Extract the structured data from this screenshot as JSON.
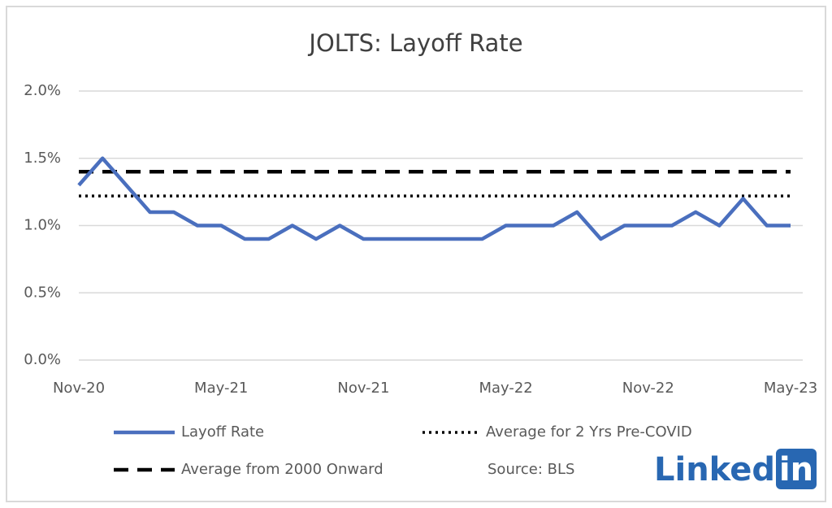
{
  "chart_data": {
    "type": "line",
    "title": "JOLTS: Layoff Rate",
    "categories": [
      "Nov-20",
      null,
      null,
      null,
      null,
      null,
      "May-21",
      null,
      null,
      null,
      null,
      null,
      "Nov-21",
      null,
      null,
      null,
      null,
      null,
      "May-22",
      null,
      null,
      null,
      null,
      null,
      "Nov-22",
      null,
      null,
      null,
      null,
      null,
      "May-23"
    ],
    "series": [
      {
        "name": "Layoff Rate",
        "color": "#4a6fbe",
        "values": [
          1.3,
          1.5,
          1.3,
          1.1,
          1.1,
          1.0,
          1.0,
          0.9,
          0.9,
          1.0,
          0.9,
          1.0,
          0.9,
          0.9,
          0.9,
          0.9,
          0.9,
          0.9,
          1.0,
          1.0,
          1.0,
          1.1,
          0.9,
          1.0,
          1.0,
          1.0,
          1.1,
          1.0,
          1.2,
          1.0,
          1.0
        ]
      }
    ],
    "reference_lines": [
      {
        "name": "Average for 2 Yrs Pre-COVID",
        "value": 1.22,
        "style": "dotted",
        "color": "#000000"
      },
      {
        "name": "Average from 2000 Onward",
        "value": 1.4,
        "style": "dashed",
        "color": "#000000"
      }
    ],
    "ylim": [
      0,
      2
    ],
    "yticks": [
      {
        "value": 0,
        "label": "0.0%"
      },
      {
        "value": 0.5,
        "label": "0.5%"
      },
      {
        "value": 1,
        "label": "1.0%"
      },
      {
        "value": 1.5,
        "label": "1.5%"
      },
      {
        "value": 2,
        "label": "2.0%"
      }
    ],
    "grid": true,
    "source": "Source: BLS",
    "watermark": [
      "Linked",
      "in"
    ]
  }
}
